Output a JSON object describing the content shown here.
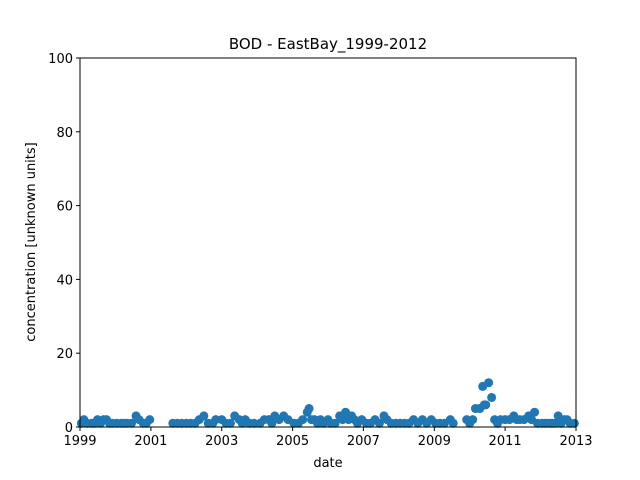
{
  "chart_data": {
    "type": "scatter",
    "title": "BOD - EastBay_1999-2012",
    "xlabel": "date",
    "ylabel": "concentration [unknown units]",
    "xlim": [
      "1999-01-01",
      "2013-01-01"
    ],
    "ylim": [
      0,
      100
    ],
    "x_ticks": [
      "1999",
      "2001",
      "2003",
      "2005",
      "2007",
      "2009",
      "2011",
      "2013"
    ],
    "y_ticks": [
      0,
      20,
      40,
      60,
      80,
      100
    ],
    "grid": false,
    "legend": "none",
    "marker_color": "#1f77b4",
    "series": [
      {
        "points": [
          [
            "1999-01-15",
            1
          ],
          [
            "1999-02-10",
            2
          ],
          [
            "1999-03-15",
            1
          ],
          [
            "1999-05-01",
            1
          ],
          [
            "1999-06-01",
            1
          ],
          [
            "1999-07-01",
            2
          ],
          [
            "1999-08-01",
            1
          ],
          [
            "1999-09-01",
            2
          ],
          [
            "1999-10-01",
            2
          ],
          [
            "1999-11-01",
            1
          ],
          [
            "1999-12-01",
            1
          ],
          [
            "2000-01-15",
            1
          ],
          [
            "2000-03-01",
            1
          ],
          [
            "2000-04-01",
            1
          ],
          [
            "2000-05-01",
            1
          ],
          [
            "2000-06-15",
            1
          ],
          [
            "2000-08-01",
            3
          ],
          [
            "2000-09-01",
            2
          ],
          [
            "2000-10-15",
            1
          ],
          [
            "2000-11-15",
            1
          ],
          [
            "2000-12-20",
            2
          ],
          [
            "2001-08-15",
            1
          ],
          [
            "2001-10-01",
            1
          ],
          [
            "2001-11-15",
            1
          ],
          [
            "2002-01-01",
            1
          ],
          [
            "2002-02-15",
            1
          ],
          [
            "2002-04-01",
            1
          ],
          [
            "2002-05-15",
            2
          ],
          [
            "2002-07-01",
            3
          ],
          [
            "2002-08-15",
            1
          ],
          [
            "2002-10-01",
            1
          ],
          [
            "2002-11-01",
            2
          ],
          [
            "2003-01-01",
            2
          ],
          [
            "2003-02-15",
            1
          ],
          [
            "2003-04-01",
            1
          ],
          [
            "2003-05-15",
            3
          ],
          [
            "2003-07-01",
            2
          ],
          [
            "2003-08-01",
            1
          ],
          [
            "2003-09-01",
            2
          ],
          [
            "2003-10-15",
            1
          ],
          [
            "2003-12-01",
            1
          ],
          [
            "2004-02-01",
            1
          ],
          [
            "2004-03-15",
            2
          ],
          [
            "2004-05-01",
            2
          ],
          [
            "2004-06-01",
            1
          ],
          [
            "2004-07-01",
            3
          ],
          [
            "2004-08-15",
            2
          ],
          [
            "2004-10-01",
            3
          ],
          [
            "2004-11-15",
            2
          ],
          [
            "2005-01-15",
            1
          ],
          [
            "2005-03-01",
            1
          ],
          [
            "2005-04-15",
            2
          ],
          [
            "2005-06-01",
            4
          ],
          [
            "2005-06-20",
            5
          ],
          [
            "2005-07-15",
            2
          ],
          [
            "2005-08-15",
            2
          ],
          [
            "2005-09-15",
            1
          ],
          [
            "2005-10-15",
            2
          ],
          [
            "2005-11-15",
            1
          ],
          [
            "2006-01-01",
            2
          ],
          [
            "2006-02-01",
            1
          ],
          [
            "2006-03-15",
            1
          ],
          [
            "2006-05-01",
            3
          ],
          [
            "2006-06-01",
            2
          ],
          [
            "2006-07-01",
            4
          ],
          [
            "2006-08-01",
            2
          ],
          [
            "2006-09-01",
            3
          ],
          [
            "2006-10-01",
            2
          ],
          [
            "2006-11-01",
            1
          ],
          [
            "2006-12-15",
            2
          ],
          [
            "2007-02-01",
            1
          ],
          [
            "2007-03-15",
            1
          ],
          [
            "2007-05-01",
            2
          ],
          [
            "2007-06-15",
            1
          ],
          [
            "2007-08-01",
            3
          ],
          [
            "2007-09-01",
            2
          ],
          [
            "2007-10-15",
            1
          ],
          [
            "2007-12-01",
            1
          ],
          [
            "2008-01-15",
            1
          ],
          [
            "2008-03-01",
            1
          ],
          [
            "2008-04-15",
            1
          ],
          [
            "2008-06-01",
            2
          ],
          [
            "2008-07-15",
            1
          ],
          [
            "2008-09-01",
            2
          ],
          [
            "2008-10-15",
            1
          ],
          [
            "2008-12-01",
            2
          ],
          [
            "2009-01-15",
            1
          ],
          [
            "2009-03-01",
            1
          ],
          [
            "2009-04-15",
            1
          ],
          [
            "2009-06-15",
            2
          ],
          [
            "2009-07-15",
            1
          ],
          [
            "2009-12-01",
            2
          ],
          [
            "2010-01-01",
            1
          ],
          [
            "2010-02-01",
            2
          ],
          [
            "2010-03-01",
            5
          ],
          [
            "2010-04-15",
            5
          ],
          [
            "2010-05-15",
            11
          ],
          [
            "2010-06-15",
            6
          ],
          [
            "2010-07-15",
            12
          ],
          [
            "2010-08-15",
            8
          ],
          [
            "2010-06-01",
            6
          ],
          [
            "2010-09-15",
            2
          ],
          [
            "2010-10-15",
            1
          ],
          [
            "2010-11-15",
            2
          ],
          [
            "2011-01-01",
            2
          ],
          [
            "2011-02-15",
            2
          ],
          [
            "2011-04-01",
            3
          ],
          [
            "2011-05-01",
            2
          ],
          [
            "2011-06-01",
            2
          ],
          [
            "2011-07-15",
            2
          ],
          [
            "2011-09-01",
            3
          ],
          [
            "2011-10-01",
            2
          ],
          [
            "2011-11-01",
            4
          ],
          [
            "2011-12-01",
            1
          ],
          [
            "2012-01-15",
            1
          ],
          [
            "2012-02-15",
            1
          ],
          [
            "2012-03-15",
            1
          ],
          [
            "2012-04-15",
            1
          ],
          [
            "2012-05-01",
            1
          ],
          [
            "2012-06-01",
            1
          ],
          [
            "2012-07-01",
            3
          ],
          [
            "2012-08-01",
            1
          ],
          [
            "2012-09-01",
            2
          ],
          [
            "2012-10-01",
            2
          ],
          [
            "2012-11-01",
            1
          ],
          [
            "2012-12-15",
            1
          ]
        ]
      }
    ]
  }
}
